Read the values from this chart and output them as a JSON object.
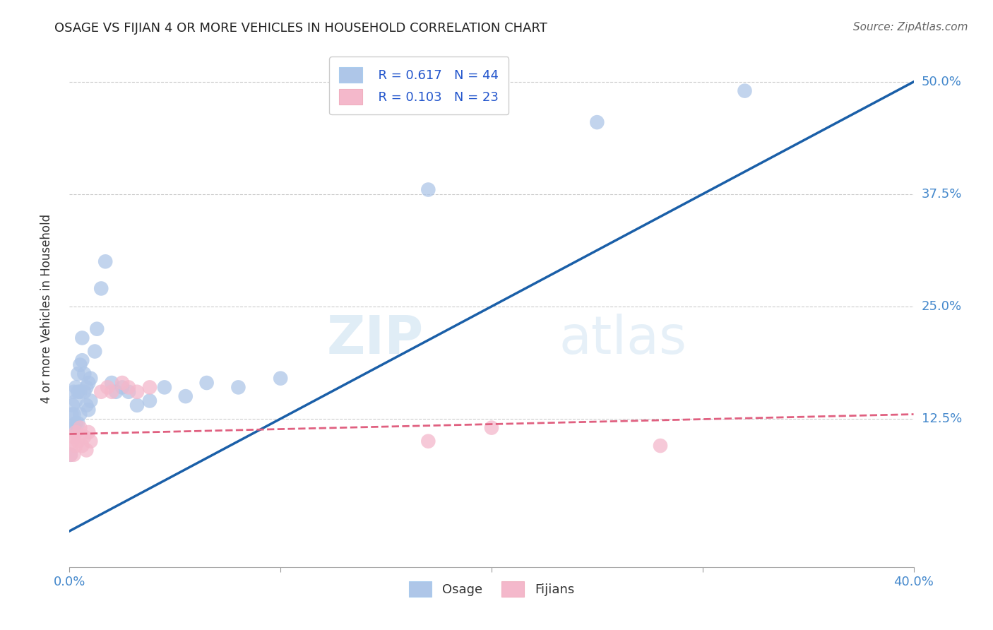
{
  "title": "OSAGE VS FIJIAN 4 OR MORE VEHICLES IN HOUSEHOLD CORRELATION CHART",
  "source": "Source: ZipAtlas.com",
  "ylabel": "4 or more Vehicles in Household",
  "legend_r_osage": "R = 0.617",
  "legend_n_osage": "N = 44",
  "legend_r_fijian": "R = 0.103",
  "legend_n_fijian": "N = 23",
  "legend_label_osage": "Osage",
  "legend_label_fijian": "Fijians",
  "color_osage": "#aec6e8",
  "color_fijian": "#f4b8cb",
  "color_osage_line": "#1a5fa8",
  "color_fijian_line": "#e06080",
  "watermark_zip": "ZIP",
  "watermark_atlas": "atlas",
  "xmin": 0.0,
  "xmax": 0.4,
  "ymin": -0.04,
  "ymax": 0.535,
  "osage_line_x0": 0.0,
  "osage_line_y0": 0.0,
  "osage_line_x1": 0.4,
  "osage_line_y1": 0.5,
  "fijian_line_x0": 0.0,
  "fijian_line_y0": 0.108,
  "fijian_line_x1": 0.4,
  "fijian_line_y1": 0.13,
  "osage_x": [
    0.0005,
    0.001,
    0.001,
    0.0015,
    0.002,
    0.002,
    0.002,
    0.003,
    0.003,
    0.003,
    0.004,
    0.004,
    0.004,
    0.005,
    0.005,
    0.005,
    0.006,
    0.006,
    0.007,
    0.007,
    0.008,
    0.008,
    0.009,
    0.009,
    0.01,
    0.01,
    0.012,
    0.013,
    0.015,
    0.017,
    0.02,
    0.022,
    0.025,
    0.028,
    0.032,
    0.038,
    0.045,
    0.055,
    0.065,
    0.08,
    0.1,
    0.17,
    0.25,
    0.32
  ],
  "osage_y": [
    0.085,
    0.13,
    0.115,
    0.14,
    0.115,
    0.13,
    0.155,
    0.12,
    0.145,
    0.16,
    0.12,
    0.155,
    0.175,
    0.13,
    0.155,
    0.185,
    0.19,
    0.215,
    0.155,
    0.175,
    0.14,
    0.16,
    0.135,
    0.165,
    0.145,
    0.17,
    0.2,
    0.225,
    0.27,
    0.3,
    0.165,
    0.155,
    0.16,
    0.155,
    0.14,
    0.145,
    0.16,
    0.15,
    0.165,
    0.16,
    0.17,
    0.38,
    0.455,
    0.49
  ],
  "fijian_x": [
    0.0005,
    0.001,
    0.002,
    0.002,
    0.003,
    0.003,
    0.004,
    0.005,
    0.006,
    0.007,
    0.008,
    0.009,
    0.01,
    0.015,
    0.018,
    0.02,
    0.025,
    0.028,
    0.032,
    0.038,
    0.17,
    0.2,
    0.28
  ],
  "fijian_y": [
    0.085,
    0.1,
    0.085,
    0.105,
    0.095,
    0.11,
    0.1,
    0.115,
    0.095,
    0.105,
    0.09,
    0.11,
    0.1,
    0.155,
    0.16,
    0.155,
    0.165,
    0.16,
    0.155,
    0.16,
    0.1,
    0.115,
    0.095
  ]
}
